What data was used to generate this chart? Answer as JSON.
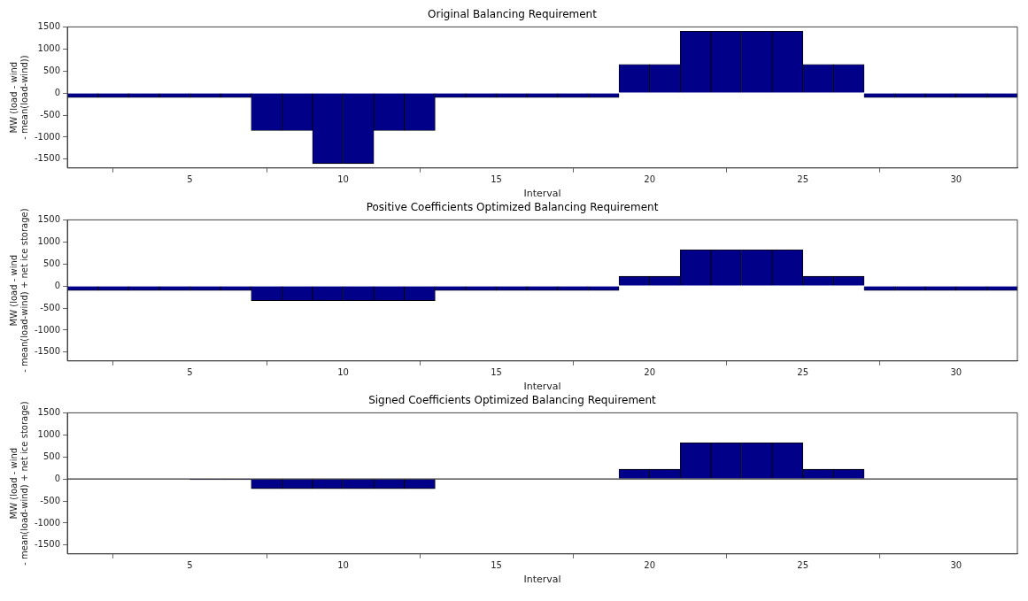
{
  "chart_data": [
    {
      "type": "bar",
      "title": "Original Balancing Requirement",
      "xlabel": "Interval",
      "ylabel": "MW (load - wind\n- mean(load-wind))",
      "x": [
        1.5,
        2.5,
        3.5,
        4.5,
        5.5,
        6.5,
        7.5,
        8.5,
        9.5,
        10.5,
        11.5,
        12.5,
        13.5,
        14.5,
        15.5,
        16.5,
        17.5,
        18.5,
        19.5,
        20.5,
        21.5,
        22.5,
        23.5,
        24.5,
        25.5,
        26.5,
        27.5,
        28.5,
        29.5,
        30.5,
        31.5
      ],
      "series": [
        {
          "color": "#000088",
          "values": [
            -100,
            -100,
            -100,
            -100,
            -100,
            -100,
            -850,
            -850,
            -1600,
            -1600,
            -850,
            -850,
            -100,
            -100,
            -100,
            -100,
            -100,
            -100,
            650,
            650,
            1400,
            1400,
            1400,
            1400,
            650,
            650,
            -100,
            -100,
            -100,
            -100,
            -100
          ]
        }
      ],
      "xlim": [
        1,
        32
      ],
      "xticks": [
        5,
        10,
        15,
        20,
        25,
        30
      ],
      "ylim": [
        -1700,
        1500
      ],
      "yticks": [
        -1500,
        -1000,
        -500,
        0,
        500,
        1000,
        1500
      ],
      "grid": false,
      "legend": false
    },
    {
      "type": "bar",
      "title": "Positive Coefficients Optimized Balancing Requirement",
      "xlabel": "Interval",
      "ylabel": "MW (load - wind\n- mean(load-wind) + net ice storage)",
      "x": [
        1.5,
        2.5,
        3.5,
        4.5,
        5.5,
        6.5,
        7.5,
        8.5,
        9.5,
        10.5,
        11.5,
        12.5,
        13.5,
        14.5,
        15.5,
        16.5,
        17.5,
        18.5,
        19.5,
        20.5,
        21.5,
        22.5,
        23.5,
        24.5,
        25.5,
        26.5,
        27.5,
        28.5,
        29.5,
        30.5,
        31.5
      ],
      "series": [
        {
          "color": "#000088",
          "values": [
            -100,
            -100,
            -100,
            -100,
            -100,
            -100,
            -330,
            -330,
            -330,
            -330,
            -330,
            -330,
            -100,
            -100,
            -100,
            -100,
            -100,
            -100,
            220,
            220,
            820,
            820,
            820,
            820,
            220,
            220,
            -100,
            -100,
            -100,
            -100,
            -100
          ]
        }
      ],
      "xlim": [
        1,
        32
      ],
      "xticks": [
        5,
        10,
        15,
        20,
        25,
        30
      ],
      "ylim": [
        -1700,
        1500
      ],
      "yticks": [
        -1500,
        -1000,
        -500,
        0,
        500,
        1000,
        1500
      ],
      "grid": false,
      "legend": false
    },
    {
      "type": "bar",
      "title": "Signed Coefficients Optimized Balancing Requirement",
      "xlabel": "Interval",
      "ylabel": "MW (load - wind\n- mean(load-wind) + net ice storage)",
      "x": [
        1.5,
        2.5,
        3.5,
        4.5,
        5.5,
        6.5,
        7.5,
        8.5,
        9.5,
        10.5,
        11.5,
        12.5,
        13.5,
        14.5,
        15.5,
        16.5,
        17.5,
        18.5,
        19.5,
        20.5,
        21.5,
        22.5,
        23.5,
        24.5,
        25.5,
        26.5,
        27.5,
        28.5,
        29.5,
        30.5,
        31.5
      ],
      "series": [
        {
          "color": "#000088",
          "values": [
            0,
            0,
            0,
            0,
            -15,
            -15,
            -220,
            -220,
            -220,
            -220,
            -220,
            -220,
            0,
            0,
            0,
            0,
            0,
            0,
            220,
            220,
            820,
            820,
            820,
            820,
            220,
            220,
            0,
            0,
            0,
            0,
            0
          ]
        }
      ],
      "xlim": [
        1,
        32
      ],
      "xticks": [
        5,
        10,
        15,
        20,
        25,
        30
      ],
      "ylim": [
        -1700,
        1500
      ],
      "yticks": [
        -1500,
        -1000,
        -500,
        0,
        500,
        1000,
        1500
      ],
      "grid": false,
      "legend": false,
      "ref_lines": [
        {
          "axis": "y",
          "value": 0,
          "color": "#000000"
        }
      ]
    }
  ]
}
